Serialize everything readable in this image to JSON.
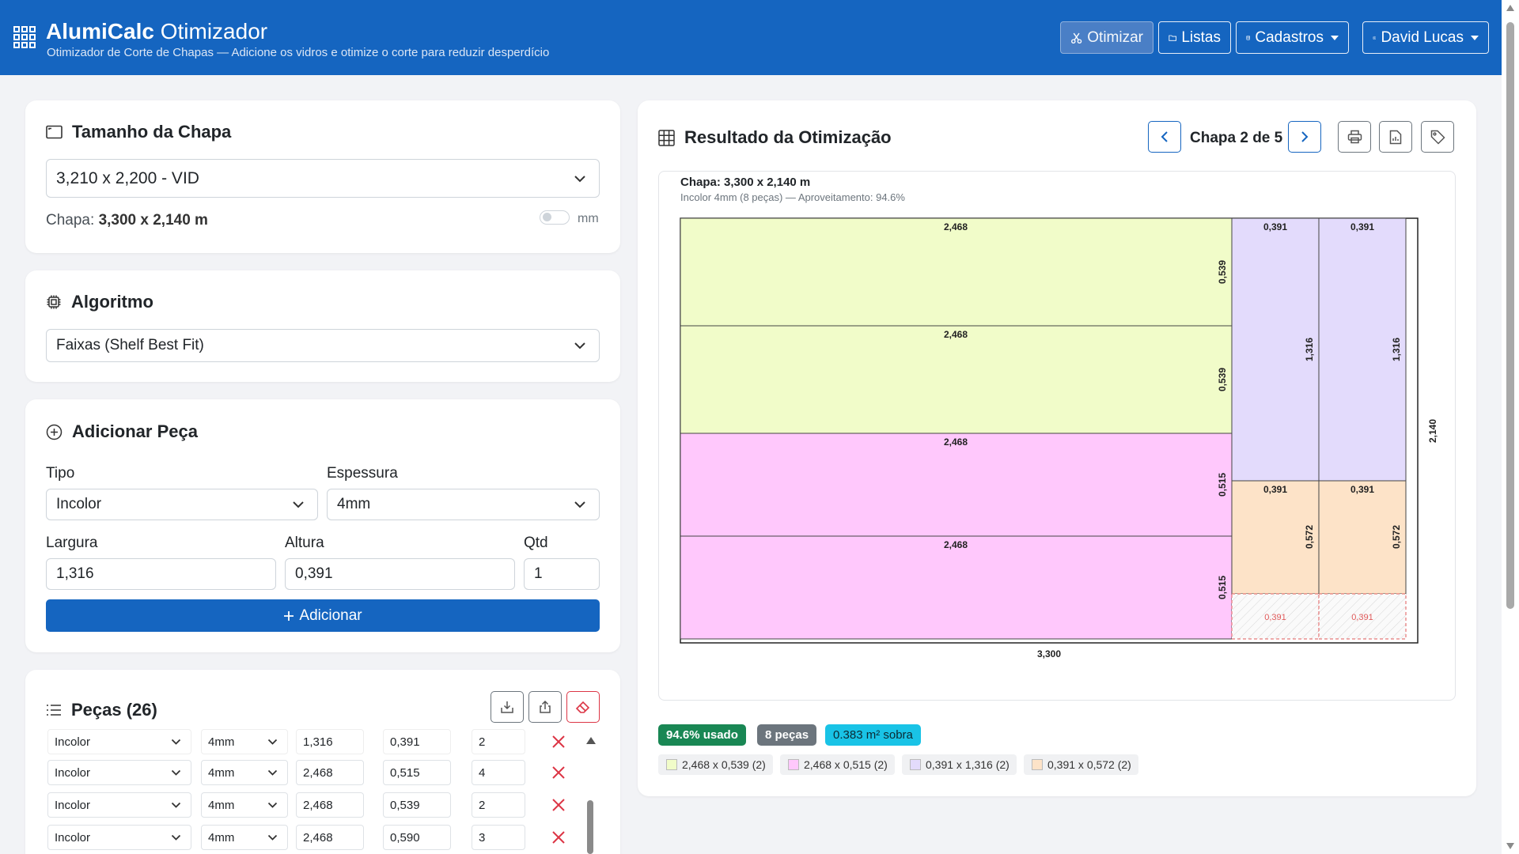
{
  "header": {
    "brand": "AlumiCalc",
    "brand_suffix": "Otimizador",
    "subtitle": "Otimizador de Corte de Chapas — Adicione os vidros e otimize o corte para reduzir desperdício",
    "nav": {
      "optimize": "Otimizar",
      "lists": "Listas",
      "registrations": "Cadastros",
      "user": "David Lucas"
    }
  },
  "sheet_size": {
    "title": "Tamanho da Chapa",
    "selected": "3,210 x 2,200 - VID",
    "chapa_label": "Chapa:",
    "chapa_value": "3,300 x 2,140 m",
    "unit_toggle_label": "mm"
  },
  "algorithm": {
    "title": "Algoritmo",
    "selected": "Faixas (Shelf Best Fit)"
  },
  "add_piece": {
    "title": "Adicionar Peça",
    "tipo_label": "Tipo",
    "tipo_value": "Incolor",
    "espessura_label": "Espessura",
    "espessura_value": "4mm",
    "largura_label": "Largura",
    "largura_value": "1,316",
    "altura_label": "Altura",
    "altura_value": "0,391",
    "qtd_label": "Qtd",
    "qtd_value": "1",
    "add_button": "Adicionar"
  },
  "pieces": {
    "title": "Peças (26)",
    "rows": [
      {
        "tipo": "Incolor",
        "espessura": "4mm",
        "largura": "1,316",
        "altura": "0,391",
        "qtd": "2"
      },
      {
        "tipo": "Incolor",
        "espessura": "4mm",
        "largura": "2,468",
        "altura": "0,515",
        "qtd": "4"
      },
      {
        "tipo": "Incolor",
        "espessura": "4mm",
        "largura": "2,468",
        "altura": "0,539",
        "qtd": "2"
      },
      {
        "tipo": "Incolor",
        "espessura": "4mm",
        "largura": "2,468",
        "altura": "0,590",
        "qtd": "3"
      }
    ]
  },
  "result": {
    "title": "Resultado da Otimização",
    "pager": "Chapa 2 de 5",
    "sheet_header": "Chapa: 3,300 x 2,140 m",
    "sheet_sub": "Incolor 4mm (8 peças) — Aproveitamento: 94.6%",
    "sheet_width_label": "3,300",
    "sheet_height_label": "2,140",
    "colors": {
      "green": "#f1fcc9",
      "pink": "#ffc8fc",
      "lavender": "#e3dbfc",
      "peach": "#fde3c8",
      "used_badge": "#198754",
      "pieces_badge": "#6c757d",
      "leftover_badge": "#19c3e6"
    },
    "pieces_on_sheet": [
      {
        "w": "2,468",
        "h": "0,539",
        "color": "green"
      },
      {
        "w": "2,468",
        "h": "0,539",
        "color": "green"
      },
      {
        "w": "2,468",
        "h": "0,515",
        "color": "pink"
      },
      {
        "w": "2,468",
        "h": "0,515",
        "color": "pink"
      },
      {
        "w": "0,391",
        "h": "1,316",
        "color": "lavender"
      },
      {
        "w": "0,391",
        "h": "1,316",
        "color": "lavender"
      },
      {
        "w": "0,391",
        "h": "0,572",
        "color": "peach"
      },
      {
        "w": "0,391",
        "h": "0,572",
        "color": "peach"
      }
    ],
    "waste_labels": [
      "0,391",
      "0,391"
    ],
    "badges": {
      "used": "94.6% usado",
      "pieces": "8 peças",
      "leftover": "0.383 m² sobra"
    },
    "legend": [
      {
        "label": "2,468 x 0,539 (2)",
        "color": "green"
      },
      {
        "label": "2,468 x 0,515 (2)",
        "color": "pink"
      },
      {
        "label": "0,391 x 1,316 (2)",
        "color": "lavender"
      },
      {
        "label": "0,391 x 0,572 (2)",
        "color": "peach"
      }
    ]
  }
}
